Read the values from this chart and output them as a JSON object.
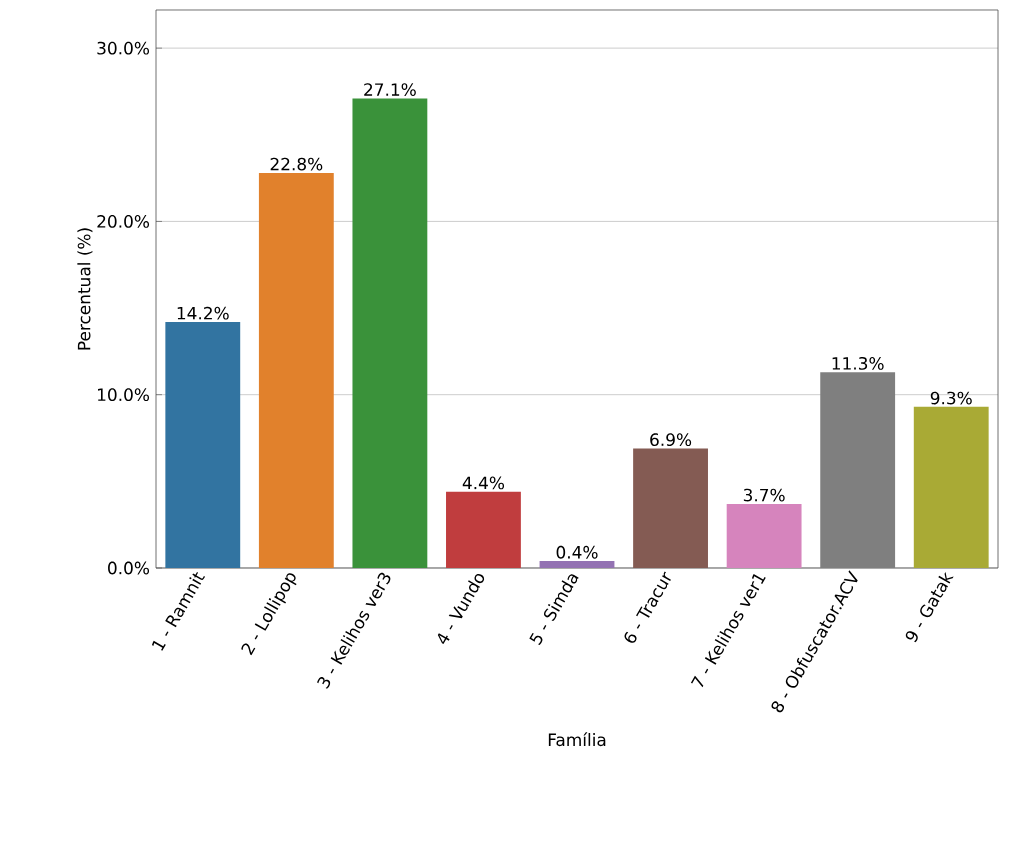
{
  "chart_data": {
    "type": "bar",
    "xlabel": "Família",
    "ylabel": "Percentual (%)",
    "categories": [
      "1 - Ramnit",
      "2 - Lollipop",
      "3 - Kelihos ver3",
      "4 - Vundo",
      "5 - Simda",
      "6 - Tracur",
      "7 - Kelihos ver1",
      "8 - Obfuscator.ACV",
      "9 - Gatak"
    ],
    "values": [
      14.2,
      22.8,
      27.1,
      4.4,
      0.4,
      6.9,
      3.7,
      11.3,
      9.3
    ],
    "value_labels": [
      "14.2%",
      "22.8%",
      "27.1%",
      "4.4%",
      "0.4%",
      "6.9%",
      "3.7%",
      "11.3%",
      "9.3%"
    ],
    "colors": [
      "#3274a1",
      "#e1812c",
      "#3a923a",
      "#c03d3e",
      "#9372b2",
      "#845b53",
      "#d684bd",
      "#7f7f7f",
      "#a9aa35"
    ],
    "ylim": [
      0,
      32.2
    ],
    "yticks": [
      {
        "value": 0,
        "label": "0.0%"
      },
      {
        "value": 10,
        "label": "10.0%"
      },
      {
        "value": 20,
        "label": "20.0%"
      },
      {
        "value": 30,
        "label": "30.0%"
      }
    ],
    "grid": "y"
  }
}
